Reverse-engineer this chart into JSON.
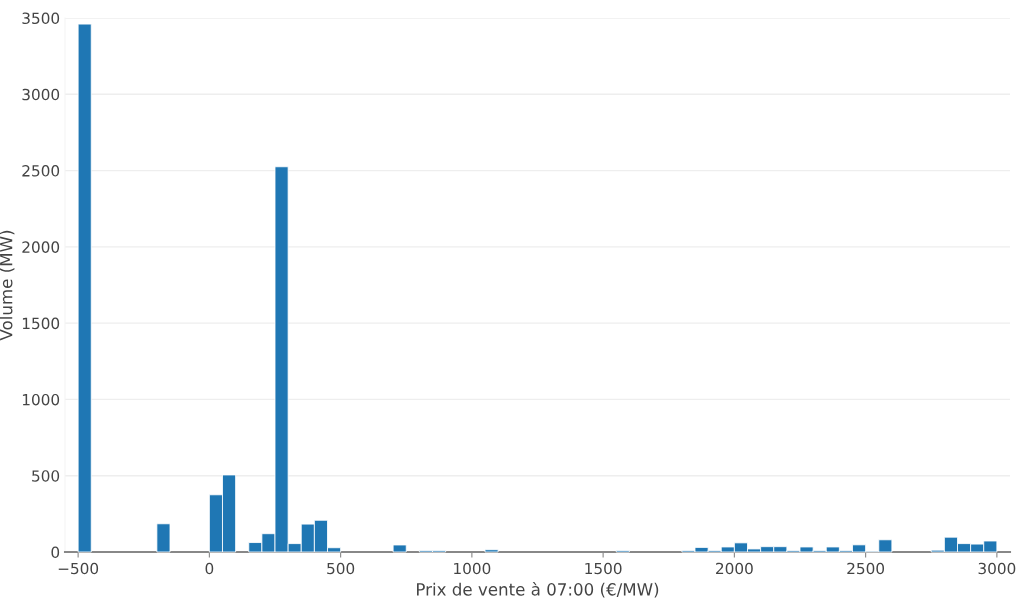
{
  "chart_data": {
    "type": "histogram",
    "xlabel": "Prix de vente à 07:00 (€/MW)",
    "ylabel": "Volume (MW)",
    "bins": [
      -500,
      -450,
      -400,
      -350,
      -300,
      -250,
      -200,
      -150,
      -100,
      -50,
      0,
      50,
      100,
      150,
      200,
      250,
      300,
      350,
      400,
      450,
      500,
      550,
      600,
      650,
      700,
      750,
      800,
      850,
      900,
      950,
      1000,
      1050,
      1100,
      1150,
      1200,
      1250,
      1300,
      1350,
      1400,
      1450,
      1500,
      1550,
      1600,
      1650,
      1700,
      1750,
      1800,
      1850,
      1900,
      1950,
      2000,
      2050,
      2100,
      2150,
      2200,
      2250,
      2300,
      2350,
      2400,
      2450,
      2500,
      2550,
      2600,
      2650,
      2700,
      2750,
      2800,
      2850,
      2900,
      2950,
      3000
    ],
    "values": [
      3460,
      0,
      0,
      0,
      0,
      0,
      185,
      0,
      0,
      0,
      375,
      505,
      0,
      62,
      120,
      2525,
      55,
      183,
      208,
      28,
      0,
      0,
      0,
      0,
      46,
      0,
      10,
      10,
      0,
      0,
      0,
      15,
      0,
      0,
      0,
      0,
      0,
      0,
      0,
      0,
      0,
      10,
      0,
      0,
      0,
      0,
      10,
      30,
      10,
      33,
      60,
      20,
      35,
      35,
      10,
      33,
      10,
      33,
      10,
      47,
      5,
      80,
      0,
      0,
      0,
      12,
      97,
      55,
      52,
      72
    ],
    "color": "#1f77b4",
    "xlim": [
      -550,
      3050
    ],
    "ylim": [
      0,
      3500
    ],
    "xticks": [
      {
        "value": -500,
        "label": "−500"
      },
      0,
      500,
      1000,
      1500,
      2000,
      2500,
      3000
    ],
    "yticks": [
      0,
      500,
      1000,
      1500,
      2000,
      2500,
      3000,
      3500
    ],
    "grid": "y"
  }
}
